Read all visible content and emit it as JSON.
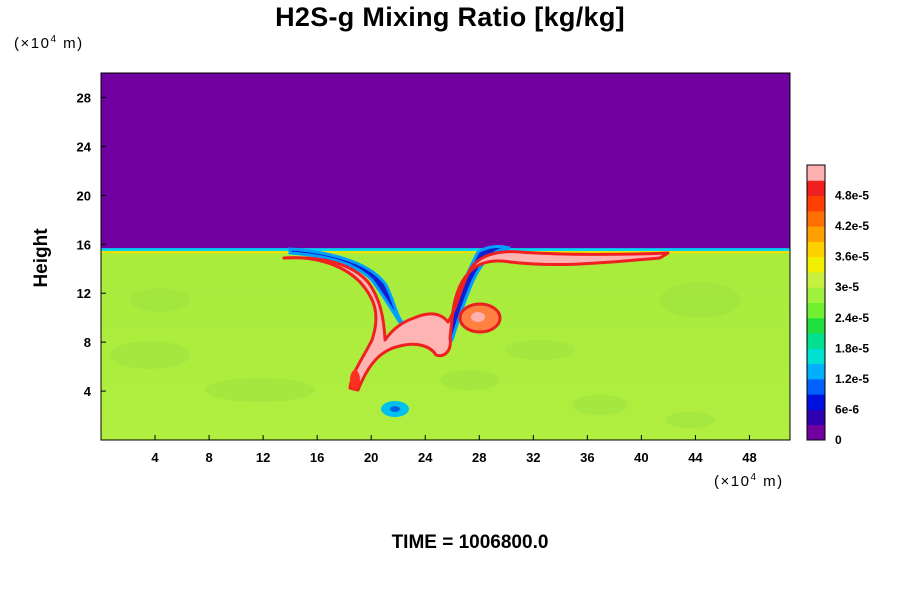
{
  "chart_data": {
    "type": "heatmap",
    "title": "H2S-g Mixing Ratio [kg/kg]",
    "ylabel": "Height",
    "xunit": "(×10",
    "yunit": "(×10",
    "unit_exp": "4",
    "unit_tail": " m)",
    "footer": "TIME = 1006800.0",
    "xlim": [
      0,
      51
    ],
    "ylim": [
      0,
      30
    ],
    "xticks": [
      4,
      8,
      12,
      16,
      20,
      24,
      28,
      32,
      36,
      40,
      44,
      48
    ],
    "yticks": [
      4,
      8,
      12,
      16,
      20,
      24,
      28
    ],
    "colorbar": {
      "min": 0,
      "max": 5.4e-05,
      "tick_values": [
        0,
        6e-06,
        1.2e-05,
        1.8e-05,
        2.4e-05,
        3e-05,
        3.6e-05,
        4.2e-05,
        4.8e-05
      ],
      "tick_labels": [
        "0",
        "6e-6",
        "1.2e-5",
        "1.8e-5",
        "2.4e-5",
        "3e-5",
        "3.6e-5",
        "4.2e-5",
        "4.8e-5"
      ],
      "colors": [
        "#7000a0",
        "#3000b0",
        "#0010e0",
        "#0060ff",
        "#00b0ff",
        "#00e0d0",
        "#00e090",
        "#20e040",
        "#70f030",
        "#a0f040",
        "#c8f040",
        "#f0f000",
        "#ffd000",
        "#ffa000",
        "#ff7000",
        "#ff4000",
        "#f02020",
        "#ffb0b0"
      ]
    },
    "regions": {
      "upper_value": 0,
      "lower_value": 3.2e-05,
      "interface_height": 15.6,
      "plume_value": 5.4e-05,
      "plume_x_range": [
        14,
        43
      ]
    }
  }
}
